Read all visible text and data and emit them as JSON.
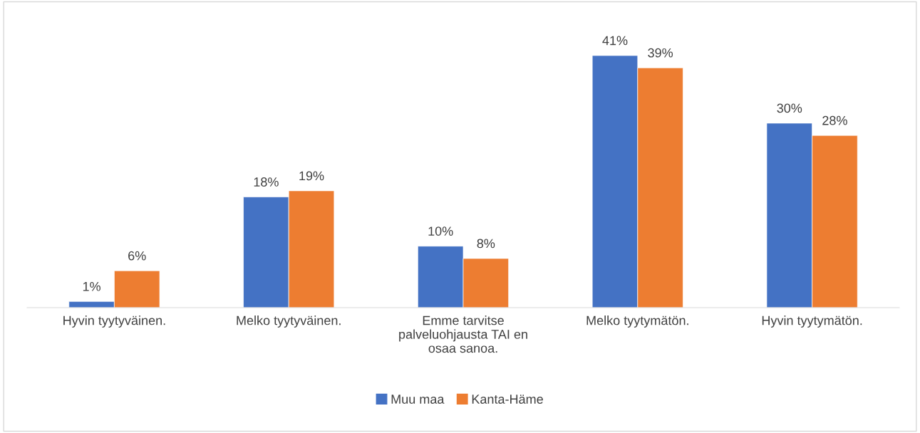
{
  "chart_data": {
    "type": "bar",
    "categories": [
      "Hyvin tyytyväinen.",
      "Melko tyytyväinen.",
      "Emme tarvitse\npalveluohjausta TAI en\nosaa sanoa.",
      "Melko tyytymätön.",
      "Hyvin tyytymätön."
    ],
    "series": [
      {
        "name": "Muu maa",
        "color": "#4472c4",
        "values": [
          1,
          18,
          10,
          41,
          30
        ],
        "value_labels": [
          "1%",
          "18%",
          "10%",
          "41%",
          "30%"
        ]
      },
      {
        "name": "Kanta-Häme",
        "color": "#ed7d31",
        "values": [
          6,
          19,
          8,
          39,
          28
        ],
        "value_labels": [
          "6%",
          "19%",
          "8%",
          "39%",
          "28%"
        ]
      }
    ],
    "grid": false,
    "legend": "bottom",
    "tick_labels": "x"
  }
}
